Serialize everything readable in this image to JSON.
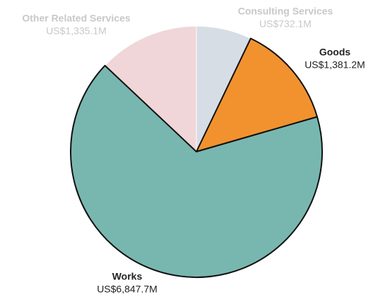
{
  "chart_data": {
    "type": "pie",
    "categories": [
      "Consulting Services",
      "Goods",
      "Works",
      "Other Related Services"
    ],
    "values": [
      732.1,
      1381.2,
      6847.7,
      1335.1
    ],
    "value_labels": [
      "US$732.1M",
      "US$1,381.2M",
      "US$6,847.7M",
      "US$1,335.1M"
    ],
    "colors": [
      "#d6dde5",
      "#f2922e",
      "#78b7b0",
      "#f0d6d8"
    ],
    "label_colors": [
      "#c8c8c8",
      "#222222",
      "#222222",
      "#c8c8c8"
    ],
    "stroke_colors": [
      "#ffffff",
      "#111111",
      "#111111",
      "#ffffff"
    ]
  }
}
